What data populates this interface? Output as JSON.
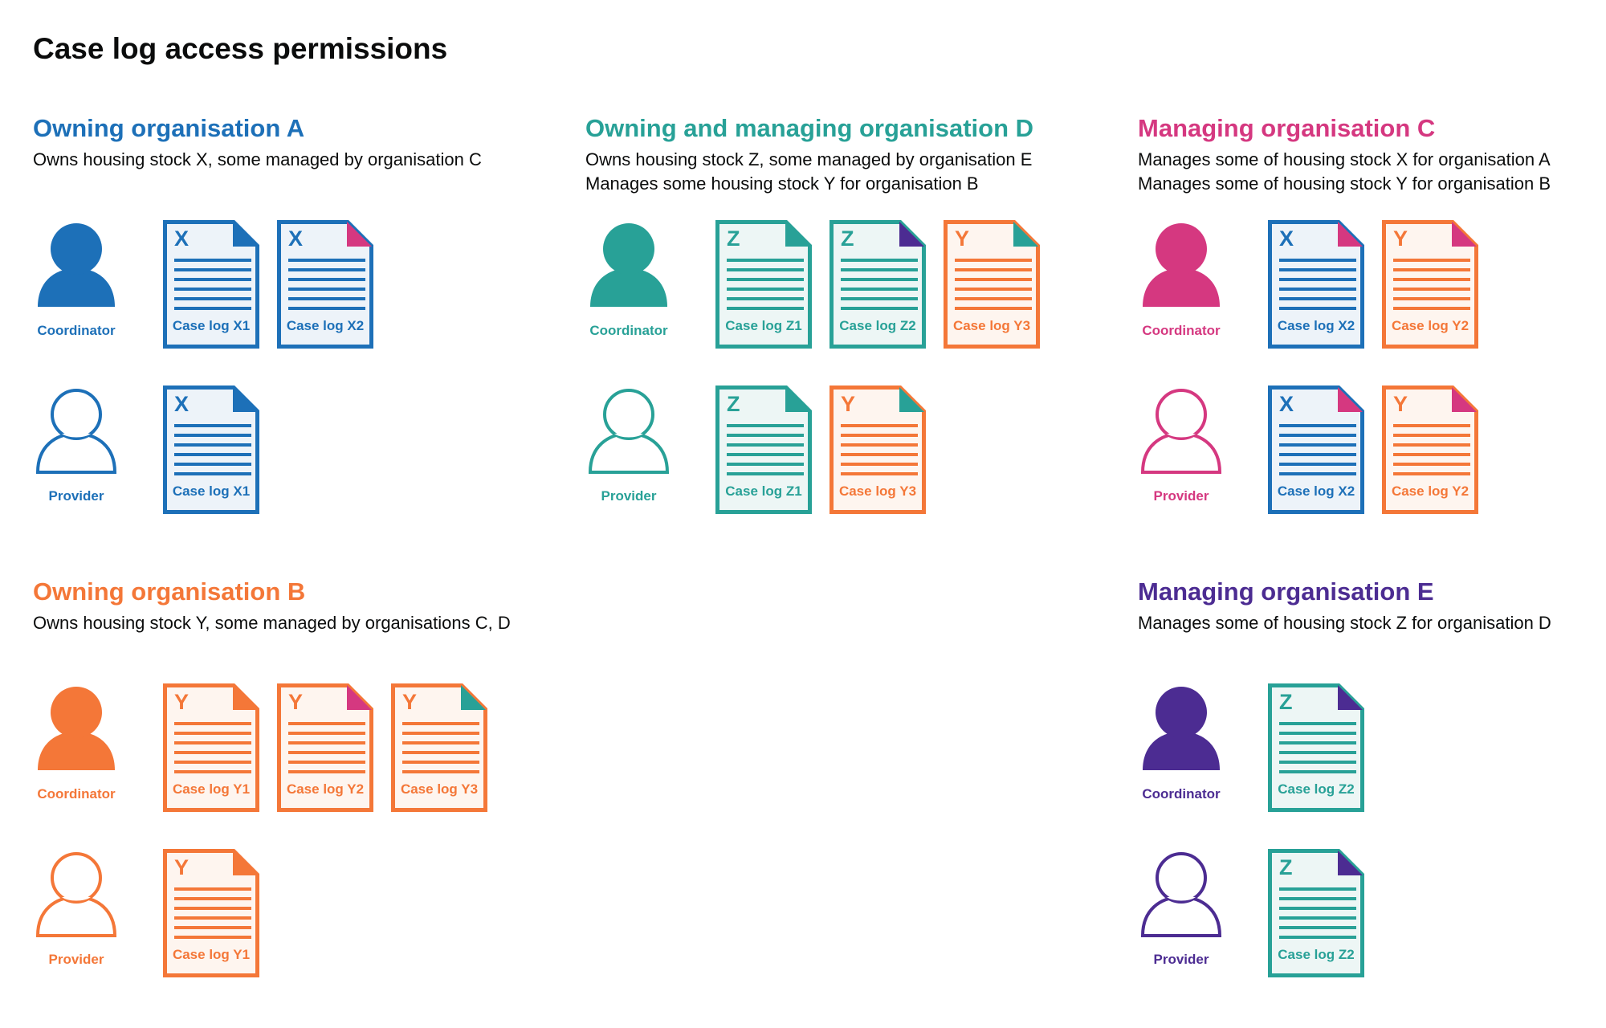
{
  "title": "Case log access permissions",
  "colors": {
    "blue": "#1d70b8",
    "teal": "#28a197",
    "pink": "#d53880",
    "orange": "#f47738",
    "purple": "#4c2c92"
  },
  "sections": [
    {
      "id": "owning-a",
      "heading": "Owning organisation A",
      "color": "#1d70b8",
      "description": [
        "Owns housing stock X, some managed by organisation C"
      ],
      "rows": [
        {
          "role": "Coordinator",
          "filled": true,
          "docs": [
            {
              "letter": "X",
              "label": "Case log X1",
              "color": "#1d70b8",
              "corner": "#1d70b8"
            },
            {
              "letter": "X",
              "label": "Case log X2",
              "color": "#1d70b8",
              "corner": "#d53880"
            }
          ]
        },
        {
          "role": "Provider",
          "filled": false,
          "docs": [
            {
              "letter": "X",
              "label": "Case log X1",
              "color": "#1d70b8",
              "corner": "#1d70b8"
            }
          ]
        }
      ]
    },
    {
      "id": "owning-managing-d",
      "heading": "Owning and managing organisation D",
      "color": "#28a197",
      "description": [
        "Owns housing stock Z, some managed by organisation E",
        "Manages some housing stock Y for organisation B"
      ],
      "rows": [
        {
          "role": "Coordinator",
          "filled": true,
          "docs": [
            {
              "letter": "Z",
              "label": "Case log Z1",
              "color": "#28a197",
              "corner": "#28a197"
            },
            {
              "letter": "Z",
              "label": "Case log Z2",
              "color": "#28a197",
              "corner": "#4c2c92"
            },
            {
              "letter": "Y",
              "label": "Case log Y3",
              "color": "#f47738",
              "corner": "#28a197"
            }
          ]
        },
        {
          "role": "Provider",
          "filled": false,
          "docs": [
            {
              "letter": "Z",
              "label": "Case log Z1",
              "color": "#28a197",
              "corner": "#28a197"
            },
            {
              "letter": "Y",
              "label": "Case log Y3",
              "color": "#f47738",
              "corner": "#28a197"
            }
          ]
        }
      ]
    },
    {
      "id": "managing-c",
      "heading": "Managing organisation C",
      "color": "#d53880",
      "description": [
        "Manages some of housing stock X for organisation A",
        "Manages some of housing stock Y for organisation B"
      ],
      "rows": [
        {
          "role": "Coordinator",
          "filled": true,
          "docs": [
            {
              "letter": "X",
              "label": "Case log X2",
              "color": "#1d70b8",
              "corner": "#d53880"
            },
            {
              "letter": "Y",
              "label": "Case log Y2",
              "color": "#f47738",
              "corner": "#d53880"
            }
          ]
        },
        {
          "role": "Provider",
          "filled": false,
          "docs": [
            {
              "letter": "X",
              "label": "Case log X2",
              "color": "#1d70b8",
              "corner": "#d53880"
            },
            {
              "letter": "Y",
              "label": "Case log Y2",
              "color": "#f47738",
              "corner": "#d53880"
            }
          ]
        }
      ]
    },
    {
      "id": "owning-b",
      "heading": "Owning organisation B",
      "color": "#f47738",
      "description": [
        "Owns housing stock Y, some managed by organisations C, D"
      ],
      "rows": [
        {
          "role": "Coordinator",
          "filled": true,
          "docs": [
            {
              "letter": "Y",
              "label": "Case log Y1",
              "color": "#f47738",
              "corner": "#f47738"
            },
            {
              "letter": "Y",
              "label": "Case log Y2",
              "color": "#f47738",
              "corner": "#d53880"
            },
            {
              "letter": "Y",
              "label": "Case log Y3",
              "color": "#f47738",
              "corner": "#28a197"
            }
          ]
        },
        {
          "role": "Provider",
          "filled": false,
          "docs": [
            {
              "letter": "Y",
              "label": "Case log Y1",
              "color": "#f47738",
              "corner": "#f47738"
            }
          ]
        }
      ]
    },
    {
      "id": "managing-e",
      "heading": "Managing organisation E",
      "color": "#4c2c92",
      "description": [
        "Manages some of housing stock Z for organisation D"
      ],
      "rows": [
        {
          "role": "Coordinator",
          "filled": true,
          "docs": [
            {
              "letter": "Z",
              "label": "Case log Z2",
              "color": "#28a197",
              "corner": "#4c2c92"
            }
          ]
        },
        {
          "role": "Provider",
          "filled": false,
          "docs": [
            {
              "letter": "Z",
              "label": "Case log Z2",
              "color": "#28a197",
              "corner": "#4c2c92"
            }
          ]
        }
      ]
    }
  ]
}
